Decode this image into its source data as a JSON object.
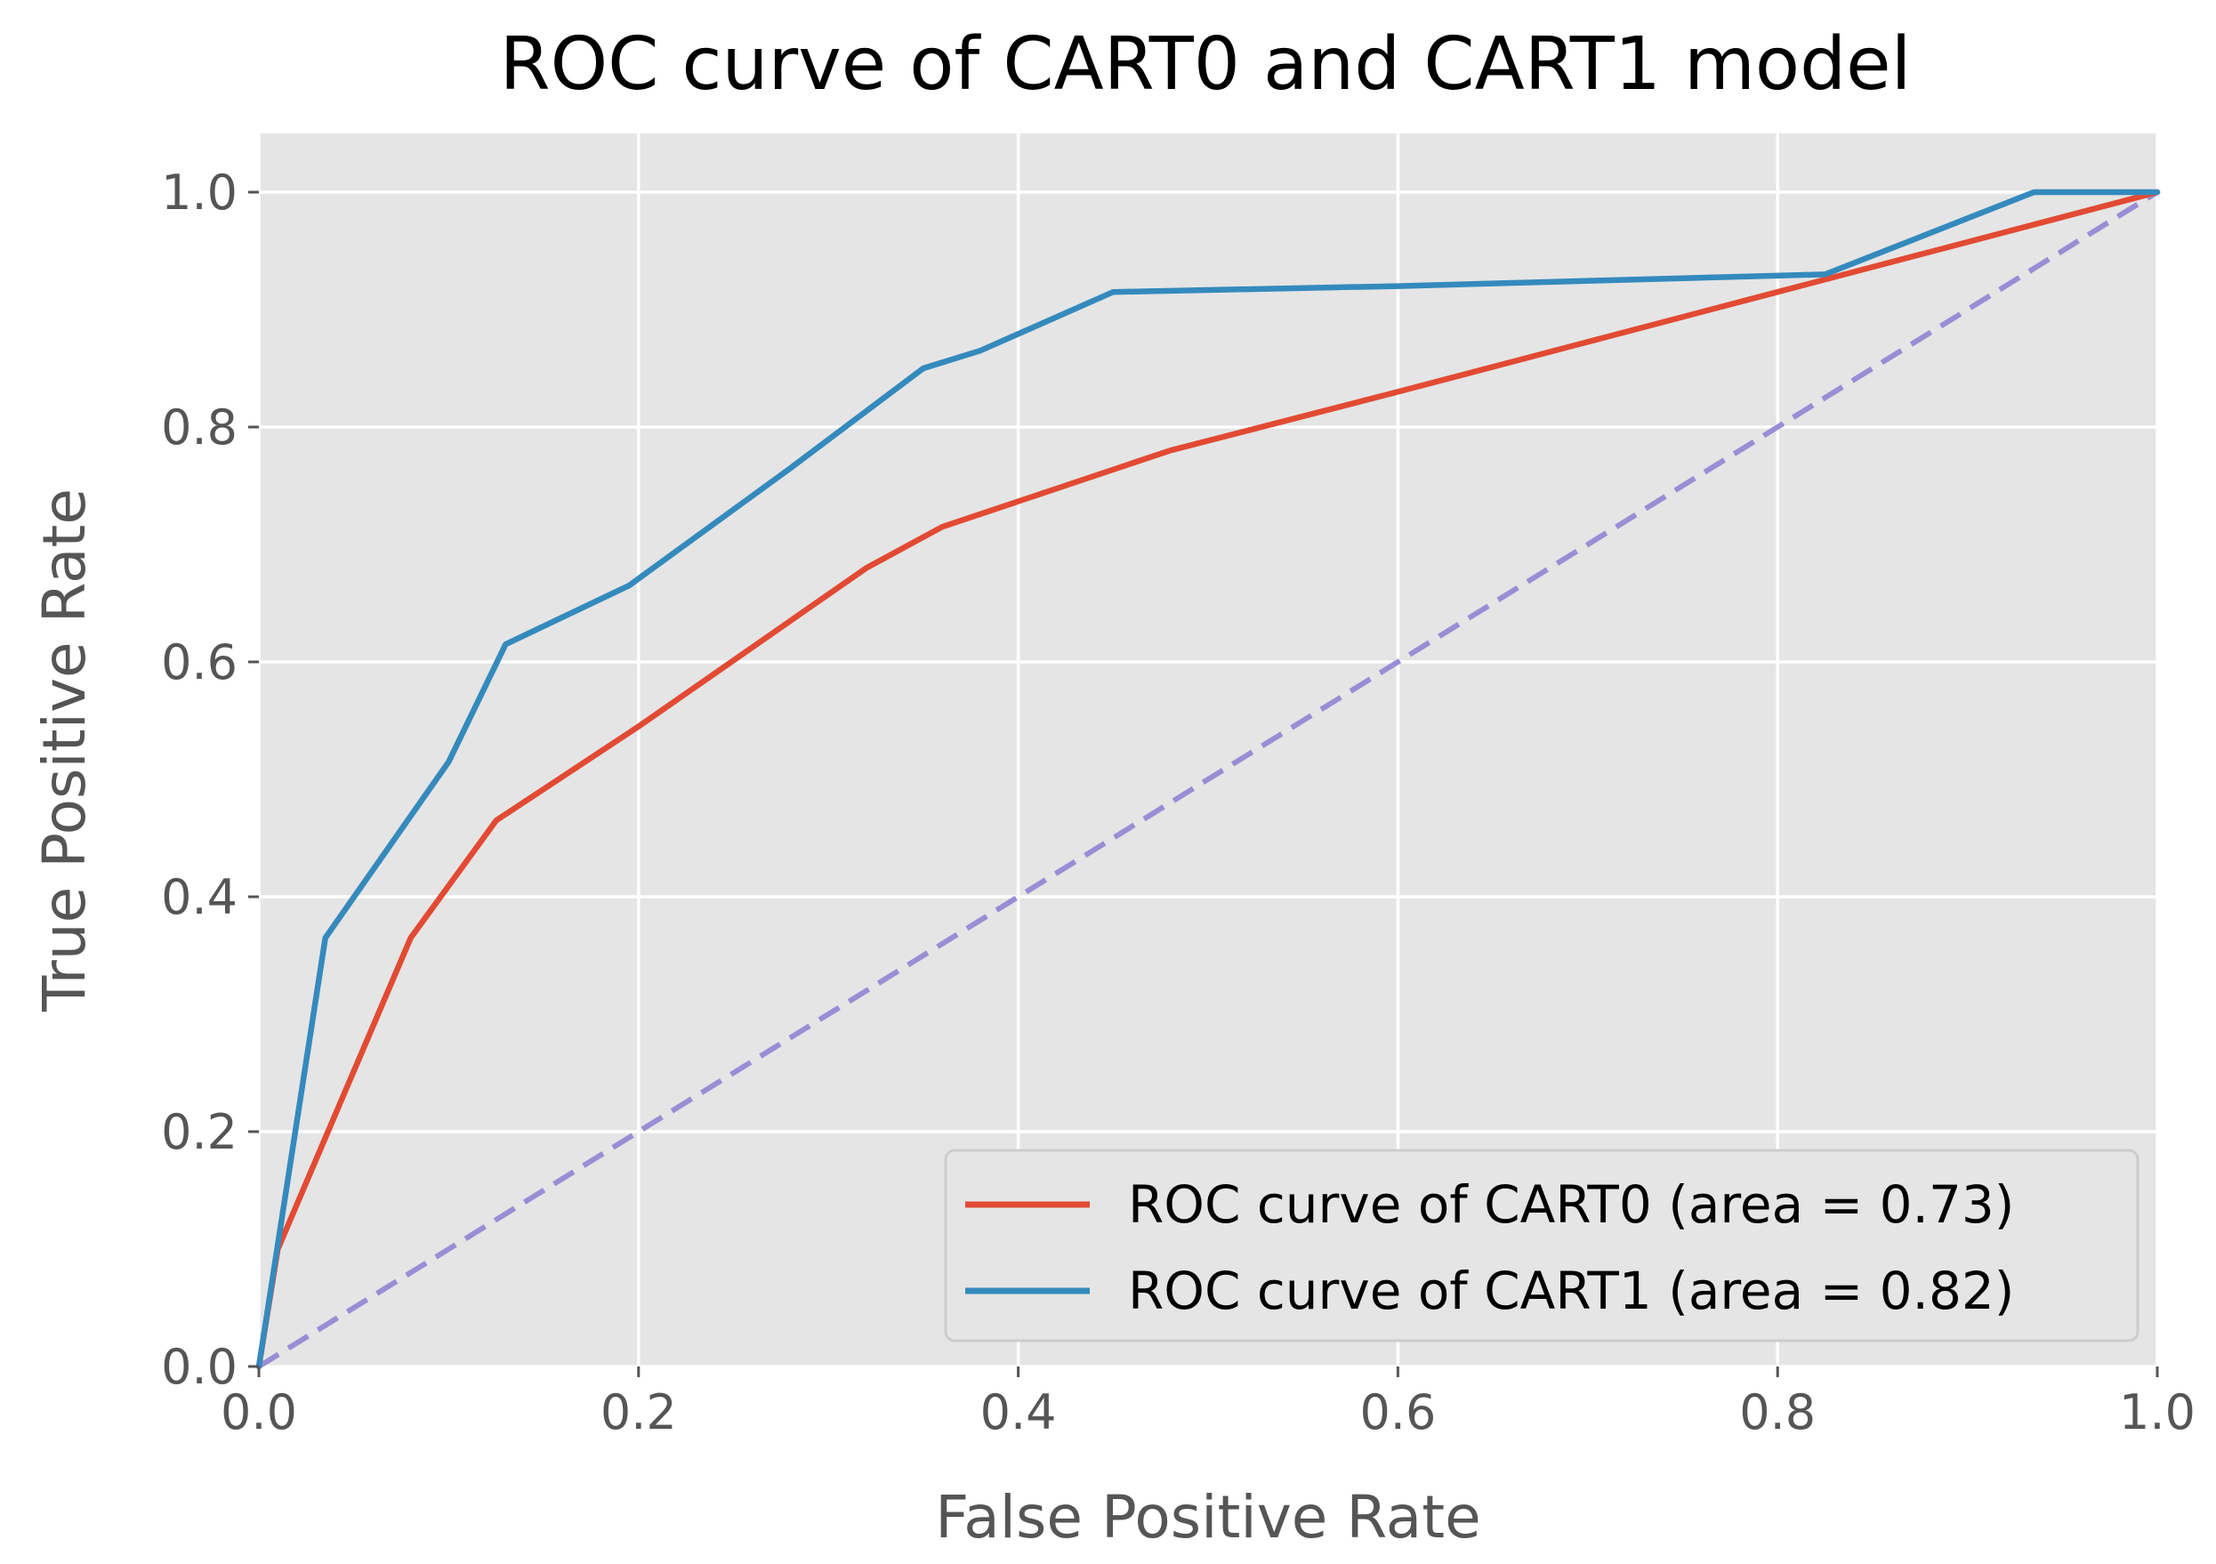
{
  "chart_data": {
    "type": "line",
    "title": "ROC curve of CART0 and CART1 model",
    "xlabel": "False Positive Rate",
    "ylabel": "True Positive Rate",
    "xlim": [
      0.0,
      1.0
    ],
    "ylim": [
      0.0,
      1.05
    ],
    "grid": true,
    "style": "ggplot",
    "legend_position": "lower right",
    "x_ticks": [
      {
        "value": 0.0,
        "label": "0.0"
      },
      {
        "value": 0.2,
        "label": "0.2"
      },
      {
        "value": 0.4,
        "label": "0.4"
      },
      {
        "value": 0.6,
        "label": "0.6"
      },
      {
        "value": 0.8,
        "label": "0.8"
      },
      {
        "value": 1.0,
        "label": "1.0"
      }
    ],
    "y_ticks": [
      {
        "value": 0.0,
        "label": "0.0"
      },
      {
        "value": 0.2,
        "label": "0.2"
      },
      {
        "value": 0.4,
        "label": "0.4"
      },
      {
        "value": 0.6,
        "label": "0.6"
      },
      {
        "value": 0.8,
        "label": "0.8"
      },
      {
        "value": 1.0,
        "label": "1.0"
      }
    ],
    "series": [
      {
        "name": "ROC curve of CART0 (area = 0.73)",
        "color": "#E24A33",
        "dashed": false,
        "show_in_legend": true,
        "x": [
          0.0,
          0.01,
          0.08,
          0.125,
          0.2,
          0.32,
          0.36,
          0.48,
          0.6,
          0.8,
          1.0
        ],
        "y": [
          0.0,
          0.1,
          0.365,
          0.465,
          0.545,
          0.68,
          0.715,
          0.78,
          0.83,
          0.915,
          1.0
        ]
      },
      {
        "name": "ROC curve of CART1 (area = 0.82)",
        "color": "#348ABD",
        "dashed": false,
        "show_in_legend": true,
        "x": [
          0.0,
          0.035,
          0.1,
          0.13,
          0.195,
          0.28,
          0.35,
          0.38,
          0.45,
          0.6,
          0.825,
          0.935,
          1.0
        ],
        "y": [
          0.0,
          0.365,
          0.515,
          0.615,
          0.665,
          0.765,
          0.85,
          0.865,
          0.915,
          0.92,
          0.93,
          1.0,
          1.0
        ]
      },
      {
        "name": "chance",
        "color": "#988ED5",
        "dashed": true,
        "show_in_legend": false,
        "x": [
          0.0,
          1.0
        ],
        "y": [
          0.0,
          1.0
        ]
      }
    ]
  }
}
